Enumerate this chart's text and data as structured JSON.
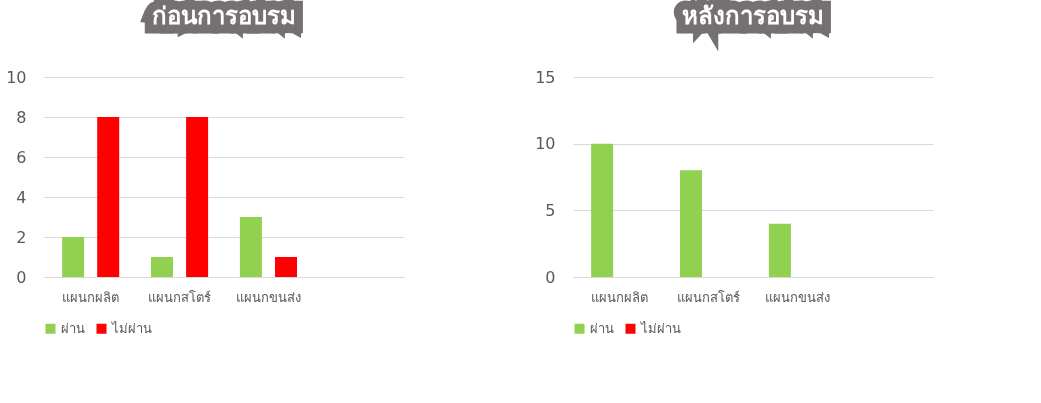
{
  "chart_data": [
    {
      "type": "bar",
      "title": "ก่อนการอบรม",
      "categories": [
        "แผนกผลิต",
        "แผนกสโตร์",
        "แผนกขนส่ง",
        null
      ],
      "series": [
        {
          "name": "ผ่าน",
          "color": "#92d050",
          "values": [
            2,
            1,
            3,
            null
          ]
        },
        {
          "name": "ไม่ผ่าน",
          "color": "#ff0000",
          "values": [
            8,
            8,
            1,
            null
          ]
        }
      ],
      "ylim": [
        0,
        10
      ],
      "yticks": [
        0,
        2,
        4,
        6,
        8,
        10
      ],
      "grid": "y",
      "legend": "bottom"
    },
    {
      "type": "bar",
      "title": "หลังการอบรม",
      "categories": [
        "แผนกผลิต",
        "แผนกสโตร์",
        "แผนกขนส่ง",
        null
      ],
      "series": [
        {
          "name": "ผ่าน",
          "color": "#92d050",
          "values": [
            10,
            8,
            4,
            null
          ]
        },
        {
          "name": "ไม่ผ่าน",
          "color": "#ff0000",
          "values": [
            0,
            0,
            0,
            null
          ]
        }
      ],
      "ylim": [
        0,
        15
      ],
      "yticks": [
        0,
        5,
        10,
        15
      ],
      "grid": "y",
      "legend": "bottom"
    }
  ]
}
